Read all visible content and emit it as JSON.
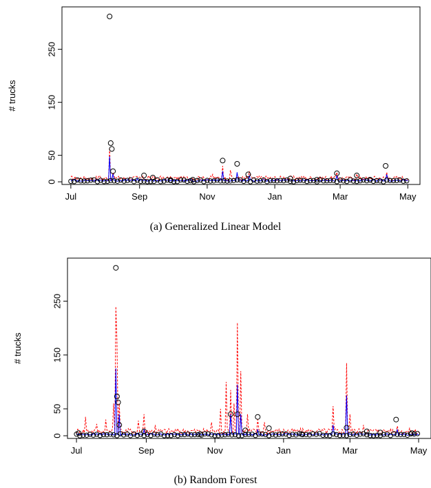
{
  "chart_data": [
    {
      "type": "scatter",
      "caption": "(a) Generalized Linear Model",
      "ylabel": "# trucks",
      "yticks": [
        "0",
        "50",
        "150",
        "250"
      ],
      "xticks": [
        "Jul",
        "Sep",
        "Nov",
        "Jan",
        "Mar",
        "May"
      ],
      "ylim": [
        -5,
        330
      ],
      "xlim": [
        -8,
        315
      ],
      "series": [
        {
          "color": "#ff0000",
          "style": "dashed",
          "spikes": [
            [
              8,
              6
            ],
            [
              14,
              8
            ],
            [
              26,
              12
            ],
            [
              35,
              62
            ],
            [
              38,
              18
            ],
            [
              60,
              10
            ],
            [
              70,
              12
            ],
            [
              80,
              8
            ],
            [
              100,
              8
            ],
            [
              115,
              10
            ],
            [
              128,
              14
            ],
            [
              137,
              30
            ],
            [
              144,
              22
            ],
            [
              150,
              14
            ],
            [
              161,
              20
            ],
            [
              172,
              10
            ],
            [
              192,
              10
            ],
            [
              210,
              10
            ],
            [
              240,
              18
            ],
            [
              258,
              15
            ],
            [
              285,
              18
            ],
            [
              305,
              10
            ]
          ],
          "base": 8
        },
        {
          "color": "#0000ff",
          "style": "solid",
          "spikes": [
            [
              35,
              48
            ],
            [
              38,
              15
            ],
            [
              60,
              6
            ],
            [
              137,
              20
            ],
            [
              150,
              18
            ],
            [
              161,
              12
            ],
            [
              240,
              12
            ],
            [
              285,
              14
            ]
          ],
          "base": 3
        }
      ],
      "points": [
        [
          35,
          312
        ],
        [
          36,
          73
        ],
        [
          37,
          62
        ],
        [
          38,
          20
        ],
        [
          66,
          12
        ],
        [
          74,
          8
        ],
        [
          137,
          40
        ],
        [
          150,
          34
        ],
        [
          160,
          14
        ],
        [
          240,
          16
        ],
        [
          258,
          12
        ],
        [
          284,
          30
        ],
        [
          198,
          6
        ],
        [
          222,
          4
        ],
        [
          110,
          4
        ],
        [
          90,
          3
        ],
        [
          270,
          4
        ]
      ]
    },
    {
      "type": "scatter",
      "caption": "(b) Random Forest",
      "ylabel": "# trucks",
      "yticks": [
        "0",
        "50",
        "150",
        "250"
      ],
      "xticks": [
        "Jul",
        "Sep",
        "Nov",
        "Jan",
        "Mar",
        "May"
      ],
      "ylim": [
        -5,
        330
      ],
      "xlim": [
        -8,
        315
      ],
      "series": [
        {
          "color": "#ff0000",
          "style": "dashed",
          "spikes": [
            [
              8,
              35
            ],
            [
              18,
              22
            ],
            [
              26,
              30
            ],
            [
              33,
              60
            ],
            [
              35,
              240
            ],
            [
              36,
              175
            ],
            [
              38,
              60
            ],
            [
              55,
              28
            ],
            [
              60,
              40
            ],
            [
              70,
              20
            ],
            [
              120,
              25
            ],
            [
              128,
              50
            ],
            [
              133,
              100
            ],
            [
              137,
              85
            ],
            [
              140,
              60
            ],
            [
              143,
              210
            ],
            [
              146,
              120
            ],
            [
              152,
              40
            ],
            [
              161,
              30
            ],
            [
              167,
              25
            ],
            [
              228,
              55
            ],
            [
              240,
              135
            ],
            [
              243,
              40
            ],
            [
              255,
              20
            ],
            [
              268,
              12
            ],
            [
              285,
              18
            ],
            [
              300,
              8
            ]
          ],
          "base": 10
        },
        {
          "color": "#0000ff",
          "style": "solid",
          "spikes": [
            [
              35,
              125
            ],
            [
              38,
              40
            ],
            [
              60,
              12
            ],
            [
              137,
              40
            ],
            [
              143,
              95
            ],
            [
              146,
              40
            ],
            [
              161,
              12
            ],
            [
              228,
              20
            ],
            [
              240,
              75
            ],
            [
              285,
              12
            ]
          ],
          "base": 3
        }
      ],
      "points": [
        [
          35,
          312
        ],
        [
          36,
          73
        ],
        [
          37,
          62
        ],
        [
          38,
          20
        ],
        [
          60,
          8
        ],
        [
          137,
          40
        ],
        [
          143,
          40
        ],
        [
          150,
          10
        ],
        [
          161,
          35
        ],
        [
          171,
          14
        ],
        [
          240,
          15
        ],
        [
          258,
          8
        ],
        [
          270,
          6
        ],
        [
          284,
          30
        ],
        [
          298,
          5
        ],
        [
          2,
          5
        ],
        [
          110,
          3
        ],
        [
          200,
          3
        ]
      ]
    }
  ]
}
